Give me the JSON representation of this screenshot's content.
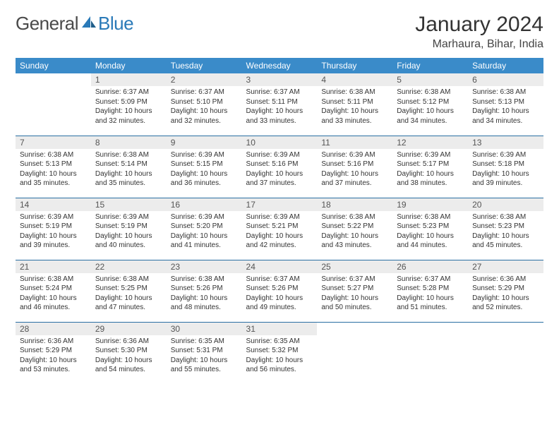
{
  "brand": {
    "part1": "General",
    "part2": "Blue",
    "color1": "#4a4a4a",
    "color2": "#2a7ab8"
  },
  "title": "January 2024",
  "location": "Marhaura, Bihar, India",
  "colors": {
    "header_bg": "#3a8bc9",
    "header_text": "#ffffff",
    "daynum_bg": "#ececec",
    "rule": "#2a6fa3",
    "body_text": "#333333"
  },
  "weekdays": [
    "Sunday",
    "Monday",
    "Tuesday",
    "Wednesday",
    "Thursday",
    "Friday",
    "Saturday"
  ],
  "weeks": [
    [
      {
        "n": "",
        "sunrise": "",
        "sunset": "",
        "daylight": ""
      },
      {
        "n": "1",
        "sunrise": "Sunrise: 6:37 AM",
        "sunset": "Sunset: 5:09 PM",
        "daylight": "Daylight: 10 hours and 32 minutes."
      },
      {
        "n": "2",
        "sunrise": "Sunrise: 6:37 AM",
        "sunset": "Sunset: 5:10 PM",
        "daylight": "Daylight: 10 hours and 32 minutes."
      },
      {
        "n": "3",
        "sunrise": "Sunrise: 6:37 AM",
        "sunset": "Sunset: 5:11 PM",
        "daylight": "Daylight: 10 hours and 33 minutes."
      },
      {
        "n": "4",
        "sunrise": "Sunrise: 6:38 AM",
        "sunset": "Sunset: 5:11 PM",
        "daylight": "Daylight: 10 hours and 33 minutes."
      },
      {
        "n": "5",
        "sunrise": "Sunrise: 6:38 AM",
        "sunset": "Sunset: 5:12 PM",
        "daylight": "Daylight: 10 hours and 34 minutes."
      },
      {
        "n": "6",
        "sunrise": "Sunrise: 6:38 AM",
        "sunset": "Sunset: 5:13 PM",
        "daylight": "Daylight: 10 hours and 34 minutes."
      }
    ],
    [
      {
        "n": "7",
        "sunrise": "Sunrise: 6:38 AM",
        "sunset": "Sunset: 5:13 PM",
        "daylight": "Daylight: 10 hours and 35 minutes."
      },
      {
        "n": "8",
        "sunrise": "Sunrise: 6:38 AM",
        "sunset": "Sunset: 5:14 PM",
        "daylight": "Daylight: 10 hours and 35 minutes."
      },
      {
        "n": "9",
        "sunrise": "Sunrise: 6:39 AM",
        "sunset": "Sunset: 5:15 PM",
        "daylight": "Daylight: 10 hours and 36 minutes."
      },
      {
        "n": "10",
        "sunrise": "Sunrise: 6:39 AM",
        "sunset": "Sunset: 5:16 PM",
        "daylight": "Daylight: 10 hours and 37 minutes."
      },
      {
        "n": "11",
        "sunrise": "Sunrise: 6:39 AM",
        "sunset": "Sunset: 5:16 PM",
        "daylight": "Daylight: 10 hours and 37 minutes."
      },
      {
        "n": "12",
        "sunrise": "Sunrise: 6:39 AM",
        "sunset": "Sunset: 5:17 PM",
        "daylight": "Daylight: 10 hours and 38 minutes."
      },
      {
        "n": "13",
        "sunrise": "Sunrise: 6:39 AM",
        "sunset": "Sunset: 5:18 PM",
        "daylight": "Daylight: 10 hours and 39 minutes."
      }
    ],
    [
      {
        "n": "14",
        "sunrise": "Sunrise: 6:39 AM",
        "sunset": "Sunset: 5:19 PM",
        "daylight": "Daylight: 10 hours and 39 minutes."
      },
      {
        "n": "15",
        "sunrise": "Sunrise: 6:39 AM",
        "sunset": "Sunset: 5:19 PM",
        "daylight": "Daylight: 10 hours and 40 minutes."
      },
      {
        "n": "16",
        "sunrise": "Sunrise: 6:39 AM",
        "sunset": "Sunset: 5:20 PM",
        "daylight": "Daylight: 10 hours and 41 minutes."
      },
      {
        "n": "17",
        "sunrise": "Sunrise: 6:39 AM",
        "sunset": "Sunset: 5:21 PM",
        "daylight": "Daylight: 10 hours and 42 minutes."
      },
      {
        "n": "18",
        "sunrise": "Sunrise: 6:38 AM",
        "sunset": "Sunset: 5:22 PM",
        "daylight": "Daylight: 10 hours and 43 minutes."
      },
      {
        "n": "19",
        "sunrise": "Sunrise: 6:38 AM",
        "sunset": "Sunset: 5:23 PM",
        "daylight": "Daylight: 10 hours and 44 minutes."
      },
      {
        "n": "20",
        "sunrise": "Sunrise: 6:38 AM",
        "sunset": "Sunset: 5:23 PM",
        "daylight": "Daylight: 10 hours and 45 minutes."
      }
    ],
    [
      {
        "n": "21",
        "sunrise": "Sunrise: 6:38 AM",
        "sunset": "Sunset: 5:24 PM",
        "daylight": "Daylight: 10 hours and 46 minutes."
      },
      {
        "n": "22",
        "sunrise": "Sunrise: 6:38 AM",
        "sunset": "Sunset: 5:25 PM",
        "daylight": "Daylight: 10 hours and 47 minutes."
      },
      {
        "n": "23",
        "sunrise": "Sunrise: 6:38 AM",
        "sunset": "Sunset: 5:26 PM",
        "daylight": "Daylight: 10 hours and 48 minutes."
      },
      {
        "n": "24",
        "sunrise": "Sunrise: 6:37 AM",
        "sunset": "Sunset: 5:26 PM",
        "daylight": "Daylight: 10 hours and 49 minutes."
      },
      {
        "n": "25",
        "sunrise": "Sunrise: 6:37 AM",
        "sunset": "Sunset: 5:27 PM",
        "daylight": "Daylight: 10 hours and 50 minutes."
      },
      {
        "n": "26",
        "sunrise": "Sunrise: 6:37 AM",
        "sunset": "Sunset: 5:28 PM",
        "daylight": "Daylight: 10 hours and 51 minutes."
      },
      {
        "n": "27",
        "sunrise": "Sunrise: 6:36 AM",
        "sunset": "Sunset: 5:29 PM",
        "daylight": "Daylight: 10 hours and 52 minutes."
      }
    ],
    [
      {
        "n": "28",
        "sunrise": "Sunrise: 6:36 AM",
        "sunset": "Sunset: 5:29 PM",
        "daylight": "Daylight: 10 hours and 53 minutes."
      },
      {
        "n": "29",
        "sunrise": "Sunrise: 6:36 AM",
        "sunset": "Sunset: 5:30 PM",
        "daylight": "Daylight: 10 hours and 54 minutes."
      },
      {
        "n": "30",
        "sunrise": "Sunrise: 6:35 AM",
        "sunset": "Sunset: 5:31 PM",
        "daylight": "Daylight: 10 hours and 55 minutes."
      },
      {
        "n": "31",
        "sunrise": "Sunrise: 6:35 AM",
        "sunset": "Sunset: 5:32 PM",
        "daylight": "Daylight: 10 hours and 56 minutes."
      },
      {
        "n": "",
        "sunrise": "",
        "sunset": "",
        "daylight": ""
      },
      {
        "n": "",
        "sunrise": "",
        "sunset": "",
        "daylight": ""
      },
      {
        "n": "",
        "sunrise": "",
        "sunset": "",
        "daylight": ""
      }
    ]
  ]
}
